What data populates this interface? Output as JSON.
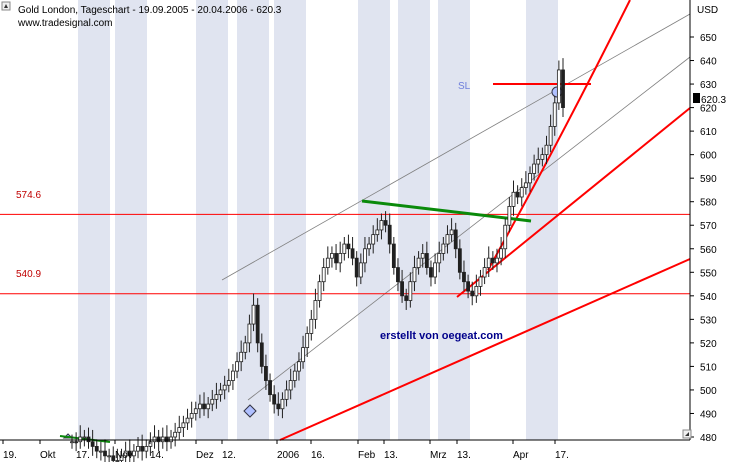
{
  "title": "Gold London, Tageschart - 19.09.2005 - 20.04.2006 - 620.3",
  "source": "www.tradesignal.com",
  "watermark": "erstellt von oegeat.com",
  "sl_label": "SL",
  "currency": "USD",
  "last_price": "620.3",
  "level_high_label": "574.6",
  "level_low_label": "540.9",
  "colors": {
    "background": "#ffffff",
    "week_band": "#e0e4f0",
    "candle": "#202020",
    "support_lines": "#ff0000",
    "trendline_green": "#0a8a0a",
    "channel": "#808080",
    "sl_marker": "#ff0000",
    "grid_axis": "#000000"
  },
  "chart_data": {
    "type": "candlestick",
    "title": "Gold London, Tageschart - 19.09.2005 - 20.04.2006 - 620.3",
    "ylabel": "USD",
    "ylim": [
      480,
      658
    ],
    "yticks": [
      480,
      490,
      500,
      510,
      520,
      530,
      540,
      550,
      560,
      570,
      580,
      590,
      600,
      610,
      620,
      630,
      640,
      650
    ],
    "x_tick_labels": [
      "19.",
      "Okt",
      "17.",
      "Nov",
      "14.",
      "Dez",
      "12.",
      "2006",
      "16.",
      "Feb",
      "13.",
      "Mrz",
      "13.",
      "Apr",
      "17."
    ],
    "last_value": 620.3,
    "horizontal_levels": [
      574.6,
      540.9
    ],
    "stop_loss": 628,
    "grid": false,
    "price_path_closes": [
      478,
      478,
      480,
      480,
      478,
      476,
      474,
      474,
      472,
      472,
      470,
      470,
      472,
      474,
      472,
      474,
      476,
      474,
      476,
      478,
      480,
      478,
      480,
      478,
      480,
      482,
      484,
      486,
      488,
      490,
      492,
      494,
      492,
      494,
      496,
      498,
      500,
      502,
      504,
      508,
      512,
      516,
      520,
      528,
      536,
      520,
      510,
      504,
      498,
      494,
      492,
      496,
      500,
      504,
      508,
      512,
      518,
      524,
      530,
      538,
      546,
      552,
      556,
      558,
      554,
      558,
      562,
      560,
      556,
      548,
      554,
      560,
      562,
      566,
      568,
      572,
      570,
      562,
      552,
      546,
      540,
      538,
      546,
      552,
      556,
      558,
      552,
      548,
      554,
      558,
      562,
      566,
      568,
      560,
      550,
      546,
      542,
      540,
      544,
      548,
      552,
      556,
      554,
      556,
      560,
      570,
      578,
      584,
      582,
      586,
      588,
      592,
      596,
      598,
      600,
      604,
      612,
      622,
      636,
      620
    ],
    "annotations": [
      {
        "type": "horizontal",
        "value": 574.6,
        "label": "574.6"
      },
      {
        "type": "horizontal",
        "value": 540.9,
        "label": "540.9"
      },
      {
        "type": "stop_loss",
        "value": 628,
        "label": "SL"
      }
    ]
  }
}
